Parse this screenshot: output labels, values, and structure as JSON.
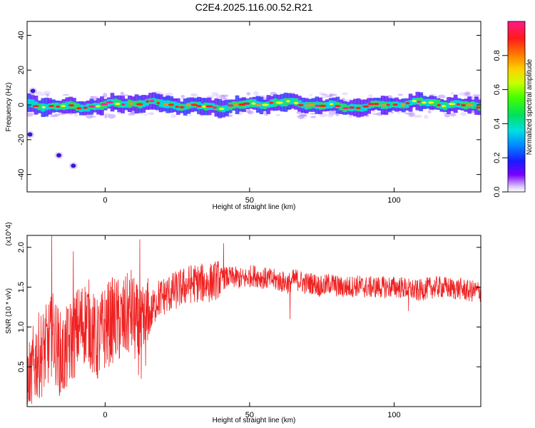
{
  "title": "C2E4.2025.116.00.52.R21",
  "chart_data": [
    {
      "type": "heatmap",
      "xlabel": "Height of straight line (km)",
      "ylabel": "Frequency (Hz)",
      "xlim": [
        -27,
        130
      ],
      "ylim": [
        -50,
        48
      ],
      "x_ticks": [
        0,
        50,
        100
      ],
      "y_ticks": [
        -40,
        -20,
        0,
        20,
        40
      ],
      "grid": false,
      "colorbar": {
        "label": "Normalized spectral amplitude",
        "range": [
          0,
          1
        ],
        "ticks": [
          0.0,
          0.2,
          0.4,
          0.6,
          0.8
        ],
        "tick_labels": [
          "0.0",
          "0.2",
          "0.4",
          "0.6",
          "0.8"
        ],
        "colormap": "rainbow (violet-blue-cyan-green-yellow-red-magenta)"
      },
      "main_band": {
        "center_hz": 0,
        "half_width_hz": 3,
        "x_range": [
          -27,
          130
        ]
      },
      "spots": [
        {
          "x": -25,
          "y": 8
        },
        {
          "x": -26,
          "y": -17
        },
        {
          "x": -16,
          "y": -29
        },
        {
          "x": -11,
          "y": -35
        }
      ]
    },
    {
      "type": "line",
      "xlabel": "Height of straight line (km)",
      "ylabel": "SNR (10 * v/v)",
      "y_multiplier": "(x10^4)",
      "xlim": [
        -27,
        130
      ],
      "ylim": [
        0,
        2.15
      ],
      "x_ticks": [
        0,
        50,
        100
      ],
      "y_ticks": [
        0.5,
        1.0,
        1.5,
        2.0
      ],
      "y_tick_labels": [
        "0.5",
        "1.0",
        "1.5",
        "2.0"
      ],
      "grid": false,
      "series": [
        {
          "color": "#ee2222",
          "x": [
            -27,
            -24,
            -21,
            -18,
            -15,
            -12,
            -9,
            -6,
            -3,
            0,
            3,
            6,
            9,
            12,
            15,
            18,
            21,
            24,
            27,
            30,
            33,
            36,
            39,
            42,
            45,
            48,
            51,
            54,
            57,
            60,
            63,
            66,
            69,
            72,
            75,
            78,
            81,
            84,
            87,
            90,
            93,
            96,
            99,
            102,
            105,
            108,
            111,
            114,
            117,
            120,
            123,
            126,
            129,
            130
          ],
          "y": [
            0.2,
            0.6,
            0.7,
            0.9,
            0.6,
            0.8,
            1.0,
            1.1,
            0.8,
            1.0,
            1.1,
            1.05,
            1.2,
            0.9,
            1.1,
            1.35,
            1.4,
            1.45,
            1.5,
            1.55,
            1.55,
            1.55,
            1.6,
            1.62,
            1.62,
            1.6,
            1.65,
            1.62,
            1.6,
            1.58,
            1.55,
            1.6,
            1.55,
            1.55,
            1.5,
            1.55,
            1.5,
            1.5,
            1.52,
            1.5,
            1.5,
            1.5,
            1.5,
            1.5,
            1.48,
            1.45,
            1.48,
            1.5,
            1.5,
            1.48,
            1.48,
            1.45,
            1.45,
            1.45
          ],
          "peaks": [
            {
              "x": -18.5,
              "y": 2.15
            },
            {
              "x": -11,
              "y": 1.95
            },
            {
              "x": 12,
              "y": 2.1
            },
            {
              "x": 12.5,
              "y": 0.35
            },
            {
              "x": 41,
              "y": 2.05
            },
            {
              "x": 64,
              "y": 1.1
            },
            {
              "x": 105,
              "y": 1.2
            }
          ]
        }
      ]
    }
  ]
}
